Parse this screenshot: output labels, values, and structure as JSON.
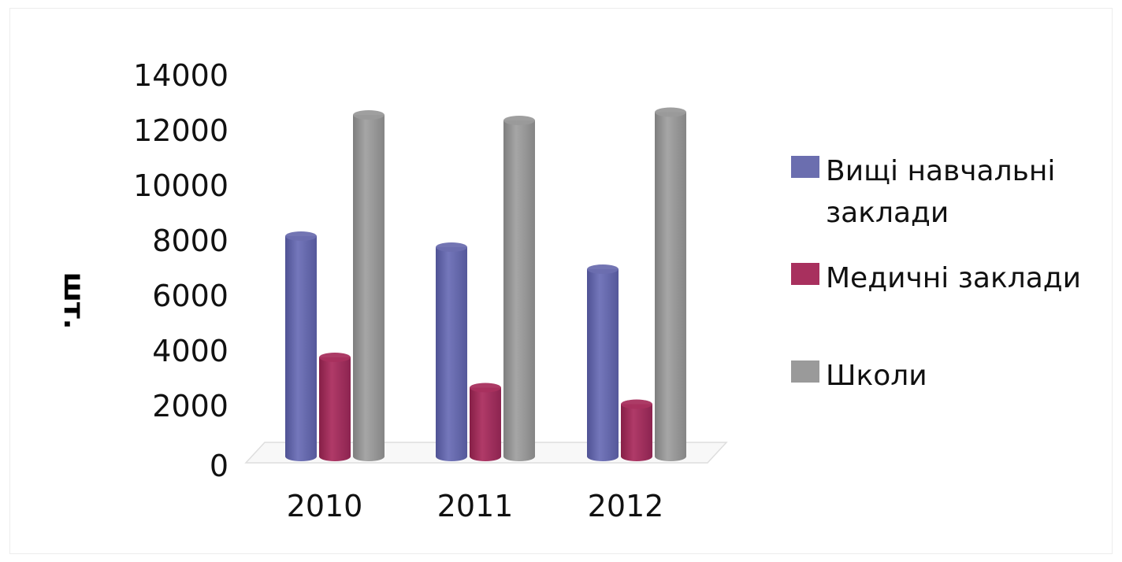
{
  "chart_data": {
    "type": "bar",
    "style": "3d-cylinder",
    "categories": [
      "2010",
      "2011",
      "2012"
    ],
    "series": [
      {
        "name": "Вищі навчальні заклади",
        "name_lines": [
          "Вищі навчальні",
          "заклади"
        ],
        "values": [
          8000,
          7600,
          6800
        ],
        "color": "#6b6eaf"
      },
      {
        "name": "Медичні заклади",
        "name_lines": [
          "Медичні заклади"
        ],
        "values": [
          3600,
          2500,
          1900
        ],
        "color": "#a8305e"
      },
      {
        "name": "Школи",
        "name_lines": [
          "Школи"
        ],
        "values": [
          12400,
          12200,
          12500
        ],
        "color": "#9a9a9a"
      }
    ],
    "yticks": [
      "14000",
      "12000",
      "10000",
      "8000",
      "6000",
      "4000",
      "2000",
      "0"
    ],
    "ylim": [
      0,
      14000
    ],
    "ylabel": "шт.",
    "xlabel": "",
    "title": "",
    "legend_position": "right",
    "grid": false
  }
}
